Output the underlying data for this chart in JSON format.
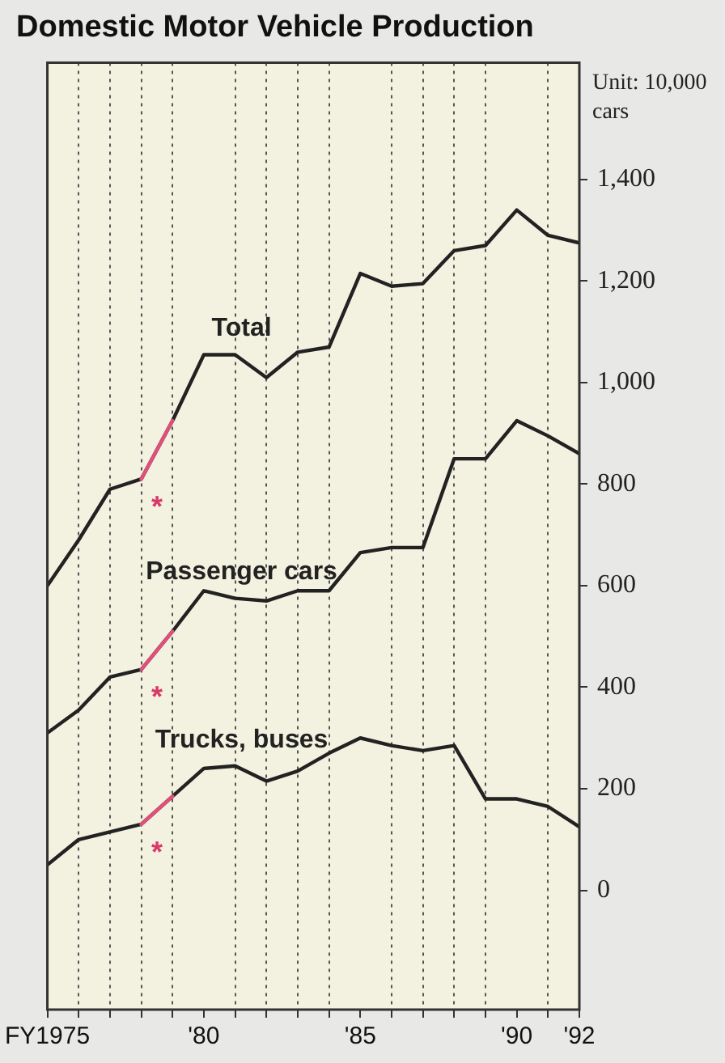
{
  "chart_data": {
    "type": "line",
    "title": "Domestic Motor Vehicle Production",
    "ylabel": "Unit: 10,000 cars",
    "x": [
      1975,
      1976,
      1977,
      1978,
      1979,
      1980,
      1981,
      1982,
      1983,
      1984,
      1985,
      1986,
      1987,
      1988,
      1989,
      1990,
      1991,
      1992
    ],
    "series": [
      {
        "name": "Total",
        "color": "#222222",
        "values": [
          600,
          690,
          790,
          810,
          925,
          1055,
          1055,
          1010,
          1060,
          1070,
          1215,
          1190,
          1195,
          1260,
          1270,
          1340,
          1290,
          1275
        ]
      },
      {
        "name": "Passenger cars",
        "color": "#222222",
        "values": [
          310,
          355,
          420,
          435,
          510,
          590,
          575,
          570,
          590,
          590,
          665,
          675,
          675,
          850,
          850,
          925,
          895,
          860
        ]
      },
      {
        "name": "Trucks, buses",
        "color": "#222222",
        "values": [
          50,
          100,
          115,
          130,
          185,
          240,
          245,
          215,
          235,
          270,
          300,
          285,
          275,
          285,
          180,
          180,
          165,
          125
        ]
      },
      {
        "type": "line",
        "color": "#e0507a",
        "values": [
          null,
          null,
          null,
          810,
          925,
          null,
          null,
          null,
          null,
          null,
          null,
          null,
          null,
          null,
          null,
          null,
          null,
          null
        ]
      },
      {
        "type": "line",
        "color": "#e0507a",
        "values": [
          null,
          null,
          null,
          435,
          510,
          null,
          null,
          null,
          null,
          null,
          null,
          null,
          null,
          null,
          null,
          null,
          null,
          null
        ]
      },
      {
        "type": "line",
        "color": "#e0507a",
        "values": [
          null,
          null,
          null,
          130,
          185,
          null,
          null,
          null,
          null,
          null,
          null,
          null,
          null,
          null,
          null,
          null,
          null,
          null
        ]
      }
    ],
    "annotations": [
      "*",
      "*",
      "*"
    ],
    "xlim": [
      1975,
      1992
    ],
    "xticks": [
      {
        "value": 1975,
        "label": "FY1975"
      },
      {
        "value": 1976,
        "label": null
      },
      {
        "value": 1977,
        "label": null
      },
      {
        "value": 1978,
        "label": null
      },
      {
        "value": 1979,
        "label": null
      },
      {
        "value": 1980,
        "label": "'80"
      },
      {
        "value": 1981,
        "label": null
      },
      {
        "value": 1982,
        "label": null
      },
      {
        "value": 1983,
        "label": null
      },
      {
        "value": 1984,
        "label": null
      },
      {
        "value": 1985,
        "label": "'85"
      },
      {
        "value": 1986,
        "label": null
      },
      {
        "value": 1987,
        "label": null
      },
      {
        "value": 1988,
        "label": null
      },
      {
        "value": 1989,
        "label": null
      },
      {
        "value": 1990,
        "label": "'90"
      },
      {
        "value": 1991,
        "label": null
      },
      {
        "value": 1992,
        "label": "'92"
      }
    ],
    "ylim": [
      -235,
      1630
    ],
    "yticks": [
      0,
      200,
      400,
      600,
      800,
      {
        "value": 1000,
        "label": "1,000"
      },
      {
        "value": 1200,
        "label": "1,200"
      },
      {
        "value": 1400,
        "label": "1,400"
      }
    ],
    "grid": "x",
    "legend": false,
    "marker": "none",
    "line_style": "solid"
  }
}
